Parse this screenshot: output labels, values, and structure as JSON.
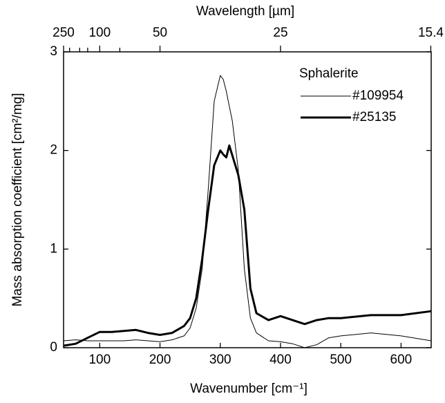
{
  "chart_data": {
    "type": "line",
    "xlabel": "Wavenumber [cm⁻¹]",
    "ylabel": "Mass absorption coefficient [cm²/mg]",
    "x2label": "Wavelength [µm]",
    "legend_title": "Sphalerite",
    "legend": "upper right",
    "xlim": [
      40,
      650
    ],
    "ylim": [
      0,
      3
    ],
    "xticks": [
      100,
      200,
      300,
      400,
      500,
      600
    ],
    "yticks": [
      0,
      1,
      2,
      3
    ],
    "x2ticks": [
      250,
      100,
      50,
      25,
      15.4
    ],
    "x2minor": [
      200,
      150,
      125,
      75
    ],
    "x": [
      40,
      60,
      80,
      100,
      120,
      140,
      160,
      180,
      200,
      220,
      240,
      250,
      260,
      270,
      280,
      290,
      300,
      305,
      310,
      315,
      320,
      330,
      340,
      350,
      360,
      380,
      400,
      420,
      440,
      460,
      480,
      500,
      550,
      600,
      650
    ],
    "series": [
      {
        "name": "#109954",
        "color": "#000000",
        "width": 1,
        "values": [
          0.07,
          0.08,
          0.07,
          0.07,
          0.07,
          0.07,
          0.08,
          0.07,
          0.06,
          0.08,
          0.12,
          0.2,
          0.4,
          0.8,
          1.6,
          2.5,
          2.76,
          2.72,
          2.6,
          2.45,
          2.3,
          1.8,
          0.8,
          0.3,
          0.15,
          0.07,
          0.06,
          0.04,
          0.0,
          0.03,
          0.1,
          0.12,
          0.15,
          0.12,
          0.07
        ]
      },
      {
        "name": "#25135",
        "color": "#000000",
        "width": 3,
        "values": [
          0.02,
          0.04,
          0.1,
          0.16,
          0.16,
          0.17,
          0.18,
          0.15,
          0.13,
          0.15,
          0.22,
          0.3,
          0.5,
          0.9,
          1.4,
          1.85,
          2.0,
          1.96,
          1.93,
          2.05,
          1.95,
          1.75,
          1.4,
          0.6,
          0.35,
          0.28,
          0.32,
          0.28,
          0.24,
          0.28,
          0.3,
          0.3,
          0.33,
          0.33,
          0.37
        ]
      }
    ]
  }
}
